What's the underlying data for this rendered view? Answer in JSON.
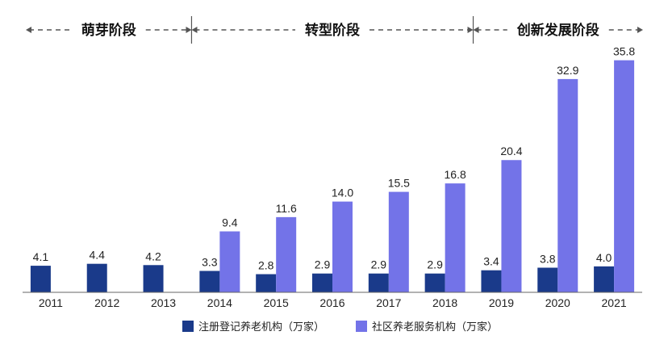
{
  "chart_data": {
    "type": "bar",
    "title": "",
    "xlabel": "",
    "ylabel": "",
    "categories": [
      "2011",
      "2012",
      "2013",
      "2014",
      "2015",
      "2016",
      "2017",
      "2018",
      "2019",
      "2020",
      "2021"
    ],
    "series": [
      {
        "name": "注册登记养老机构（万家）",
        "color": "#1a3a8a",
        "values": [
          4.1,
          4.4,
          4.2,
          3.3,
          2.8,
          2.9,
          2.9,
          2.9,
          3.4,
          3.8,
          4.0
        ]
      },
      {
        "name": "社区养老服务机构（万家）",
        "color": "#7373e8",
        "values": [
          null,
          null,
          null,
          9.4,
          11.6,
          14.0,
          15.5,
          16.8,
          20.4,
          32.9,
          35.8
        ]
      }
    ],
    "value_labels": [
      [
        "4.1",
        "4.4",
        "4.2",
        "3.3",
        "2.8",
        "2.9",
        "2.9",
        "2.9",
        "3.4",
        "3.8",
        "4.0"
      ],
      [
        null,
        null,
        null,
        "9.4",
        "11.6",
        "14.0",
        "15.5",
        "16.8",
        "20.4",
        "32.9",
        "35.8"
      ]
    ],
    "ylim": [
      0,
      36.5
    ],
    "grid": false,
    "legend_position": "bottom-center",
    "stages": [
      {
        "label": "萌芽阶段",
        "from": "2011",
        "to": "2013"
      },
      {
        "label": "转型阶段",
        "from": "2014",
        "to": "2018"
      },
      {
        "label": "创新发展阶段",
        "from": "2019",
        "to": "2021"
      }
    ]
  }
}
